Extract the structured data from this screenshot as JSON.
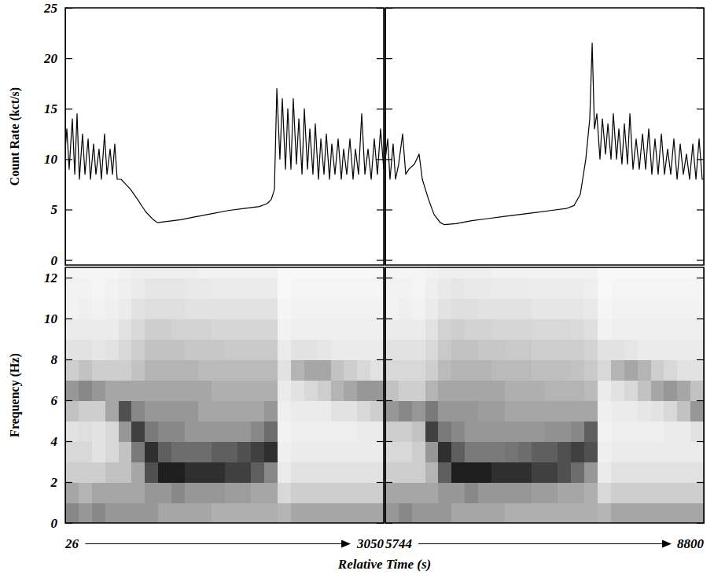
{
  "chart_data": [
    {
      "type": "line",
      "ylabel": "Count Rate (kct/s)",
      "x": [
        26,
        41,
        63,
        93,
        116,
        138,
        160,
        190,
        213,
        243,
        265,
        295,
        317,
        347,
        369,
        399,
        422,
        452,
        474,
        496,
        519,
        556,
        601,
        646,
        713,
        788,
        862,
        900,
        974,
        1124,
        1273,
        1422,
        1572,
        1721,
        1870,
        1945,
        1982,
        2012,
        2035,
        2064,
        2087,
        2117,
        2139,
        2169,
        2191,
        2221,
        2244,
        2274,
        2296,
        2326,
        2348,
        2378,
        2400,
        2430,
        2453,
        2483,
        2505,
        2535,
        2557,
        2587,
        2617,
        2647,
        2669,
        2699,
        2729,
        2759,
        2781,
        2811,
        2841,
        2871,
        2901,
        2931,
        2960,
        2990,
        3020,
        3050
      ],
      "values": [
        11,
        13,
        9,
        14,
        8.5,
        14.5,
        8,
        12.5,
        8.5,
        12,
        8,
        11.5,
        8.5,
        11,
        8,
        12.5,
        8.5,
        11,
        8.5,
        11.5,
        8,
        8,
        7.5,
        7,
        6,
        4.8,
        4,
        3.7,
        3.8,
        4,
        4.3,
        4.6,
        4.9,
        5.1,
        5.3,
        5.6,
        6,
        7,
        17,
        10,
        16,
        9,
        15,
        9,
        16,
        9.5,
        14,
        8.5,
        15,
        9,
        13,
        8.5,
        13.5,
        8,
        12,
        8.5,
        12.5,
        8,
        11.5,
        8.5,
        12,
        8,
        11,
        8.5,
        12,
        8,
        11,
        8.5,
        14.5,
        8.5,
        11,
        8,
        12,
        8.5,
        13,
        9
      ],
      "color": "#000000",
      "xlim": [
        26,
        3050
      ],
      "ylim": [
        -0.5,
        25
      ],
      "yticks": [
        0,
        5,
        10,
        15,
        20,
        25
      ],
      "tick_labels": "y"
    },
    {
      "type": "line",
      "x": [
        5744,
        5767,
        5789,
        5819,
        5842,
        5872,
        5910,
        5940,
        5970,
        6023,
        6068,
        6099,
        6159,
        6212,
        6272,
        6310,
        6423,
        6574,
        6725,
        6876,
        7027,
        7178,
        7329,
        7480,
        7555,
        7615,
        7668,
        7706,
        7729,
        7751,
        7774,
        7804,
        7827,
        7857,
        7880,
        7910,
        7932,
        7963,
        7985,
        8015,
        8038,
        8068,
        8091,
        8121,
        8151,
        8181,
        8212,
        8242,
        8272,
        8302,
        8332,
        8362,
        8393,
        8423,
        8453,
        8483,
        8513,
        8544,
        8574,
        8604,
        8634,
        8664,
        8695,
        8725,
        8755,
        8785,
        8800
      ],
      "values": [
        10,
        12,
        8,
        11.5,
        8,
        9.5,
        12.5,
        8.5,
        9,
        9.5,
        10.5,
        8,
        6,
        4.5,
        3.7,
        3.5,
        3.6,
        3.9,
        4.1,
        4.3,
        4.5,
        4.7,
        4.9,
        5.1,
        5.4,
        6.5,
        10,
        14,
        21.5,
        13,
        14.5,
        10,
        14,
        10.5,
        13.5,
        10,
        14.5,
        10,
        13,
        9.5,
        13.5,
        9.5,
        14.5,
        9,
        12,
        9,
        12.5,
        9,
        13,
        8.5,
        12,
        8.5,
        12.5,
        8.5,
        11,
        8.5,
        12,
        8,
        11.5,
        8.5,
        10.5,
        8,
        11.5,
        8,
        12,
        8,
        8
      ],
      "color": "#000000",
      "xlim": [
        5744,
        8800
      ],
      "ylim": [
        -0.5,
        25
      ],
      "yticks": [
        0,
        5,
        10,
        15,
        20,
        25
      ],
      "tick_labels": false
    },
    {
      "type": "heatmap",
      "ylabel": "Frequency (Hz)",
      "xlabel": "Relative Time (s)",
      "xbins": [
        26,
        152,
        278,
        404,
        530,
        656,
        782,
        908,
        1034,
        1160,
        1286,
        1412,
        1538,
        1664,
        1790,
        1916,
        2042,
        2168,
        2294,
        2420,
        2546,
        2672,
        2798,
        2924,
        3050
      ],
      "ybins": [
        0,
        1,
        2,
        3,
        4,
        5,
        6,
        7,
        8,
        9,
        10,
        11,
        12,
        13
      ],
      "z": [
        [
          0.55,
          0.5,
          0.55,
          0.5,
          0.5,
          0.5,
          0.5,
          0.45,
          0.45,
          0.45,
          0.45,
          0.42,
          0.42,
          0.42,
          0.42,
          0.42,
          0.4,
          0.45,
          0.45,
          0.45,
          0.45,
          0.45,
          0.45,
          0.45
        ],
        [
          0.45,
          0.4,
          0.45,
          0.45,
          0.45,
          0.45,
          0.5,
          0.5,
          0.55,
          0.5,
          0.5,
          0.5,
          0.48,
          0.48,
          0.45,
          0.45,
          0.25,
          0.3,
          0.3,
          0.3,
          0.3,
          0.3,
          0.3,
          0.3
        ],
        [
          0.3,
          0.3,
          0.3,
          0.35,
          0.35,
          0.45,
          0.75,
          0.9,
          0.9,
          0.85,
          0.85,
          0.85,
          0.8,
          0.8,
          0.7,
          0.55,
          0.15,
          0.2,
          0.2,
          0.2,
          0.2,
          0.2,
          0.2,
          0.2
        ],
        [
          0.25,
          0.25,
          0.2,
          0.25,
          0.35,
          0.6,
          0.85,
          0.7,
          0.65,
          0.65,
          0.65,
          0.7,
          0.7,
          0.75,
          0.8,
          0.85,
          0.12,
          0.15,
          0.15,
          0.15,
          0.15,
          0.15,
          0.15,
          0.15
        ],
        [
          0.2,
          0.22,
          0.2,
          0.25,
          0.5,
          0.8,
          0.6,
          0.55,
          0.55,
          0.5,
          0.5,
          0.5,
          0.5,
          0.5,
          0.55,
          0.65,
          0.1,
          0.12,
          0.12,
          0.12,
          0.12,
          0.12,
          0.15,
          0.15
        ],
        [
          0.35,
          0.3,
          0.3,
          0.45,
          0.75,
          0.55,
          0.5,
          0.5,
          0.5,
          0.5,
          0.45,
          0.45,
          0.45,
          0.45,
          0.45,
          0.5,
          0.12,
          0.15,
          0.15,
          0.15,
          0.2,
          0.2,
          0.25,
          0.3
        ],
        [
          0.5,
          0.55,
          0.5,
          0.45,
          0.45,
          0.45,
          0.45,
          0.45,
          0.45,
          0.45,
          0.45,
          0.42,
          0.42,
          0.42,
          0.42,
          0.42,
          0.15,
          0.2,
          0.25,
          0.3,
          0.4,
          0.45,
          0.5,
          0.5
        ],
        [
          0.3,
          0.35,
          0.3,
          0.3,
          0.3,
          0.35,
          0.4,
          0.4,
          0.4,
          0.4,
          0.38,
          0.38,
          0.38,
          0.38,
          0.38,
          0.38,
          0.2,
          0.4,
          0.45,
          0.45,
          0.35,
          0.3,
          0.25,
          0.2
        ],
        [
          0.2,
          0.2,
          0.18,
          0.2,
          0.25,
          0.3,
          0.35,
          0.35,
          0.35,
          0.33,
          0.33,
          0.33,
          0.32,
          0.32,
          0.32,
          0.32,
          0.15,
          0.2,
          0.2,
          0.18,
          0.15,
          0.15,
          0.15,
          0.15
        ],
        [
          0.15,
          0.15,
          0.15,
          0.15,
          0.2,
          0.25,
          0.3,
          0.3,
          0.28,
          0.28,
          0.28,
          0.26,
          0.26,
          0.26,
          0.26,
          0.26,
          0.1,
          0.12,
          0.12,
          0.12,
          0.12,
          0.12,
          0.12,
          0.12
        ],
        [
          0.1,
          0.12,
          0.1,
          0.12,
          0.15,
          0.2,
          0.22,
          0.22,
          0.22,
          0.2,
          0.2,
          0.2,
          0.2,
          0.2,
          0.2,
          0.2,
          0.08,
          0.1,
          0.1,
          0.1,
          0.1,
          0.1,
          0.1,
          0.1
        ],
        [
          0.1,
          0.1,
          0.08,
          0.1,
          0.12,
          0.15,
          0.18,
          0.18,
          0.18,
          0.16,
          0.16,
          0.15,
          0.15,
          0.15,
          0.15,
          0.15,
          0.06,
          0.08,
          0.08,
          0.08,
          0.08,
          0.08,
          0.08,
          0.08
        ],
        [
          0.08,
          0.08,
          0.08,
          0.08,
          0.1,
          0.12,
          0.12,
          0.12,
          0.12,
          0.12,
          0.1,
          0.1,
          0.1,
          0.1,
          0.1,
          0.1,
          0.06,
          0.06,
          0.06,
          0.06,
          0.06,
          0.06,
          0.06,
          0.06
        ]
      ],
      "zlim": [
        0,
        1
      ],
      "xlim": [
        26,
        3050
      ],
      "ylim": [
        0,
        12.5
      ],
      "xticks": [
        26,
        3050
      ],
      "yticks": [
        0,
        2,
        4,
        6,
        8,
        10,
        12
      ]
    },
    {
      "type": "heatmap",
      "xbins": [
        5744,
        5871,
        5999,
        6126,
        6253,
        6381,
        6508,
        6635,
        6763,
        6890,
        7017,
        7145,
        7272,
        7399,
        7527,
        7654,
        7781,
        7909,
        8036,
        8163,
        8291,
        8418,
        8545,
        8673,
        8800
      ],
      "ybins": [
        0,
        1,
        2,
        3,
        4,
        5,
        6,
        7,
        8,
        9,
        10,
        11,
        12,
        13
      ],
      "z": [
        [
          0.5,
          0.55,
          0.5,
          0.5,
          0.5,
          0.45,
          0.45,
          0.45,
          0.45,
          0.42,
          0.42,
          0.42,
          0.42,
          0.42,
          0.42,
          0.42,
          0.4,
          0.45,
          0.45,
          0.45,
          0.45,
          0.45,
          0.45,
          0.45
        ],
        [
          0.45,
          0.45,
          0.45,
          0.45,
          0.5,
          0.5,
          0.55,
          0.5,
          0.5,
          0.5,
          0.5,
          0.48,
          0.48,
          0.45,
          0.45,
          0.42,
          0.25,
          0.3,
          0.3,
          0.3,
          0.3,
          0.3,
          0.3,
          0.3
        ],
        [
          0.3,
          0.3,
          0.3,
          0.4,
          0.7,
          0.9,
          0.9,
          0.9,
          0.85,
          0.85,
          0.85,
          0.8,
          0.8,
          0.75,
          0.65,
          0.5,
          0.15,
          0.2,
          0.2,
          0.2,
          0.2,
          0.2,
          0.2,
          0.2
        ],
        [
          0.25,
          0.25,
          0.3,
          0.5,
          0.85,
          0.7,
          0.6,
          0.6,
          0.6,
          0.62,
          0.65,
          0.7,
          0.7,
          0.75,
          0.8,
          0.75,
          0.12,
          0.15,
          0.15,
          0.15,
          0.15,
          0.15,
          0.15,
          0.15
        ],
        [
          0.3,
          0.3,
          0.35,
          0.8,
          0.6,
          0.55,
          0.5,
          0.5,
          0.5,
          0.5,
          0.5,
          0.5,
          0.52,
          0.52,
          0.55,
          0.7,
          0.1,
          0.12,
          0.12,
          0.12,
          0.12,
          0.15,
          0.15,
          0.2
        ],
        [
          0.5,
          0.55,
          0.5,
          0.6,
          0.5,
          0.5,
          0.5,
          0.48,
          0.48,
          0.45,
          0.45,
          0.45,
          0.45,
          0.45,
          0.45,
          0.45,
          0.12,
          0.15,
          0.15,
          0.18,
          0.2,
          0.25,
          0.35,
          0.5
        ],
        [
          0.35,
          0.3,
          0.3,
          0.4,
          0.45,
          0.45,
          0.45,
          0.45,
          0.45,
          0.42,
          0.42,
          0.42,
          0.4,
          0.4,
          0.4,
          0.38,
          0.15,
          0.2,
          0.25,
          0.35,
          0.45,
          0.5,
          0.45,
          0.35
        ],
        [
          0.25,
          0.25,
          0.25,
          0.3,
          0.38,
          0.4,
          0.4,
          0.4,
          0.38,
          0.38,
          0.38,
          0.36,
          0.36,
          0.36,
          0.35,
          0.32,
          0.25,
          0.4,
          0.45,
          0.4,
          0.3,
          0.25,
          0.2,
          0.2
        ],
        [
          0.2,
          0.2,
          0.2,
          0.25,
          0.32,
          0.35,
          0.35,
          0.33,
          0.33,
          0.32,
          0.32,
          0.3,
          0.3,
          0.3,
          0.3,
          0.28,
          0.2,
          0.2,
          0.18,
          0.15,
          0.15,
          0.15,
          0.15,
          0.15
        ],
        [
          0.15,
          0.15,
          0.15,
          0.2,
          0.28,
          0.3,
          0.28,
          0.28,
          0.26,
          0.26,
          0.26,
          0.25,
          0.25,
          0.25,
          0.24,
          0.22,
          0.1,
          0.12,
          0.12,
          0.12,
          0.12,
          0.12,
          0.12,
          0.12
        ],
        [
          0.1,
          0.12,
          0.1,
          0.15,
          0.2,
          0.22,
          0.22,
          0.2,
          0.2,
          0.2,
          0.2,
          0.18,
          0.18,
          0.18,
          0.18,
          0.16,
          0.08,
          0.1,
          0.1,
          0.1,
          0.1,
          0.1,
          0.1,
          0.1
        ],
        [
          0.1,
          0.1,
          0.08,
          0.12,
          0.16,
          0.18,
          0.16,
          0.16,
          0.15,
          0.15,
          0.15,
          0.14,
          0.14,
          0.14,
          0.14,
          0.12,
          0.06,
          0.08,
          0.08,
          0.08,
          0.08,
          0.08,
          0.08,
          0.08
        ],
        [
          0.08,
          0.08,
          0.08,
          0.1,
          0.12,
          0.12,
          0.12,
          0.12,
          0.1,
          0.1,
          0.1,
          0.1,
          0.1,
          0.1,
          0.1,
          0.1,
          0.06,
          0.06,
          0.06,
          0.06,
          0.06,
          0.06,
          0.06,
          0.06
        ]
      ],
      "zlim": [
        0,
        1
      ],
      "xlim": [
        5744,
        8800
      ],
      "ylim": [
        0,
        12.5
      ],
      "xticks": [
        5744,
        8800
      ],
      "yticks": [
        0,
        2,
        4,
        6,
        8,
        10,
        12
      ],
      "tick_labels": "x"
    }
  ]
}
